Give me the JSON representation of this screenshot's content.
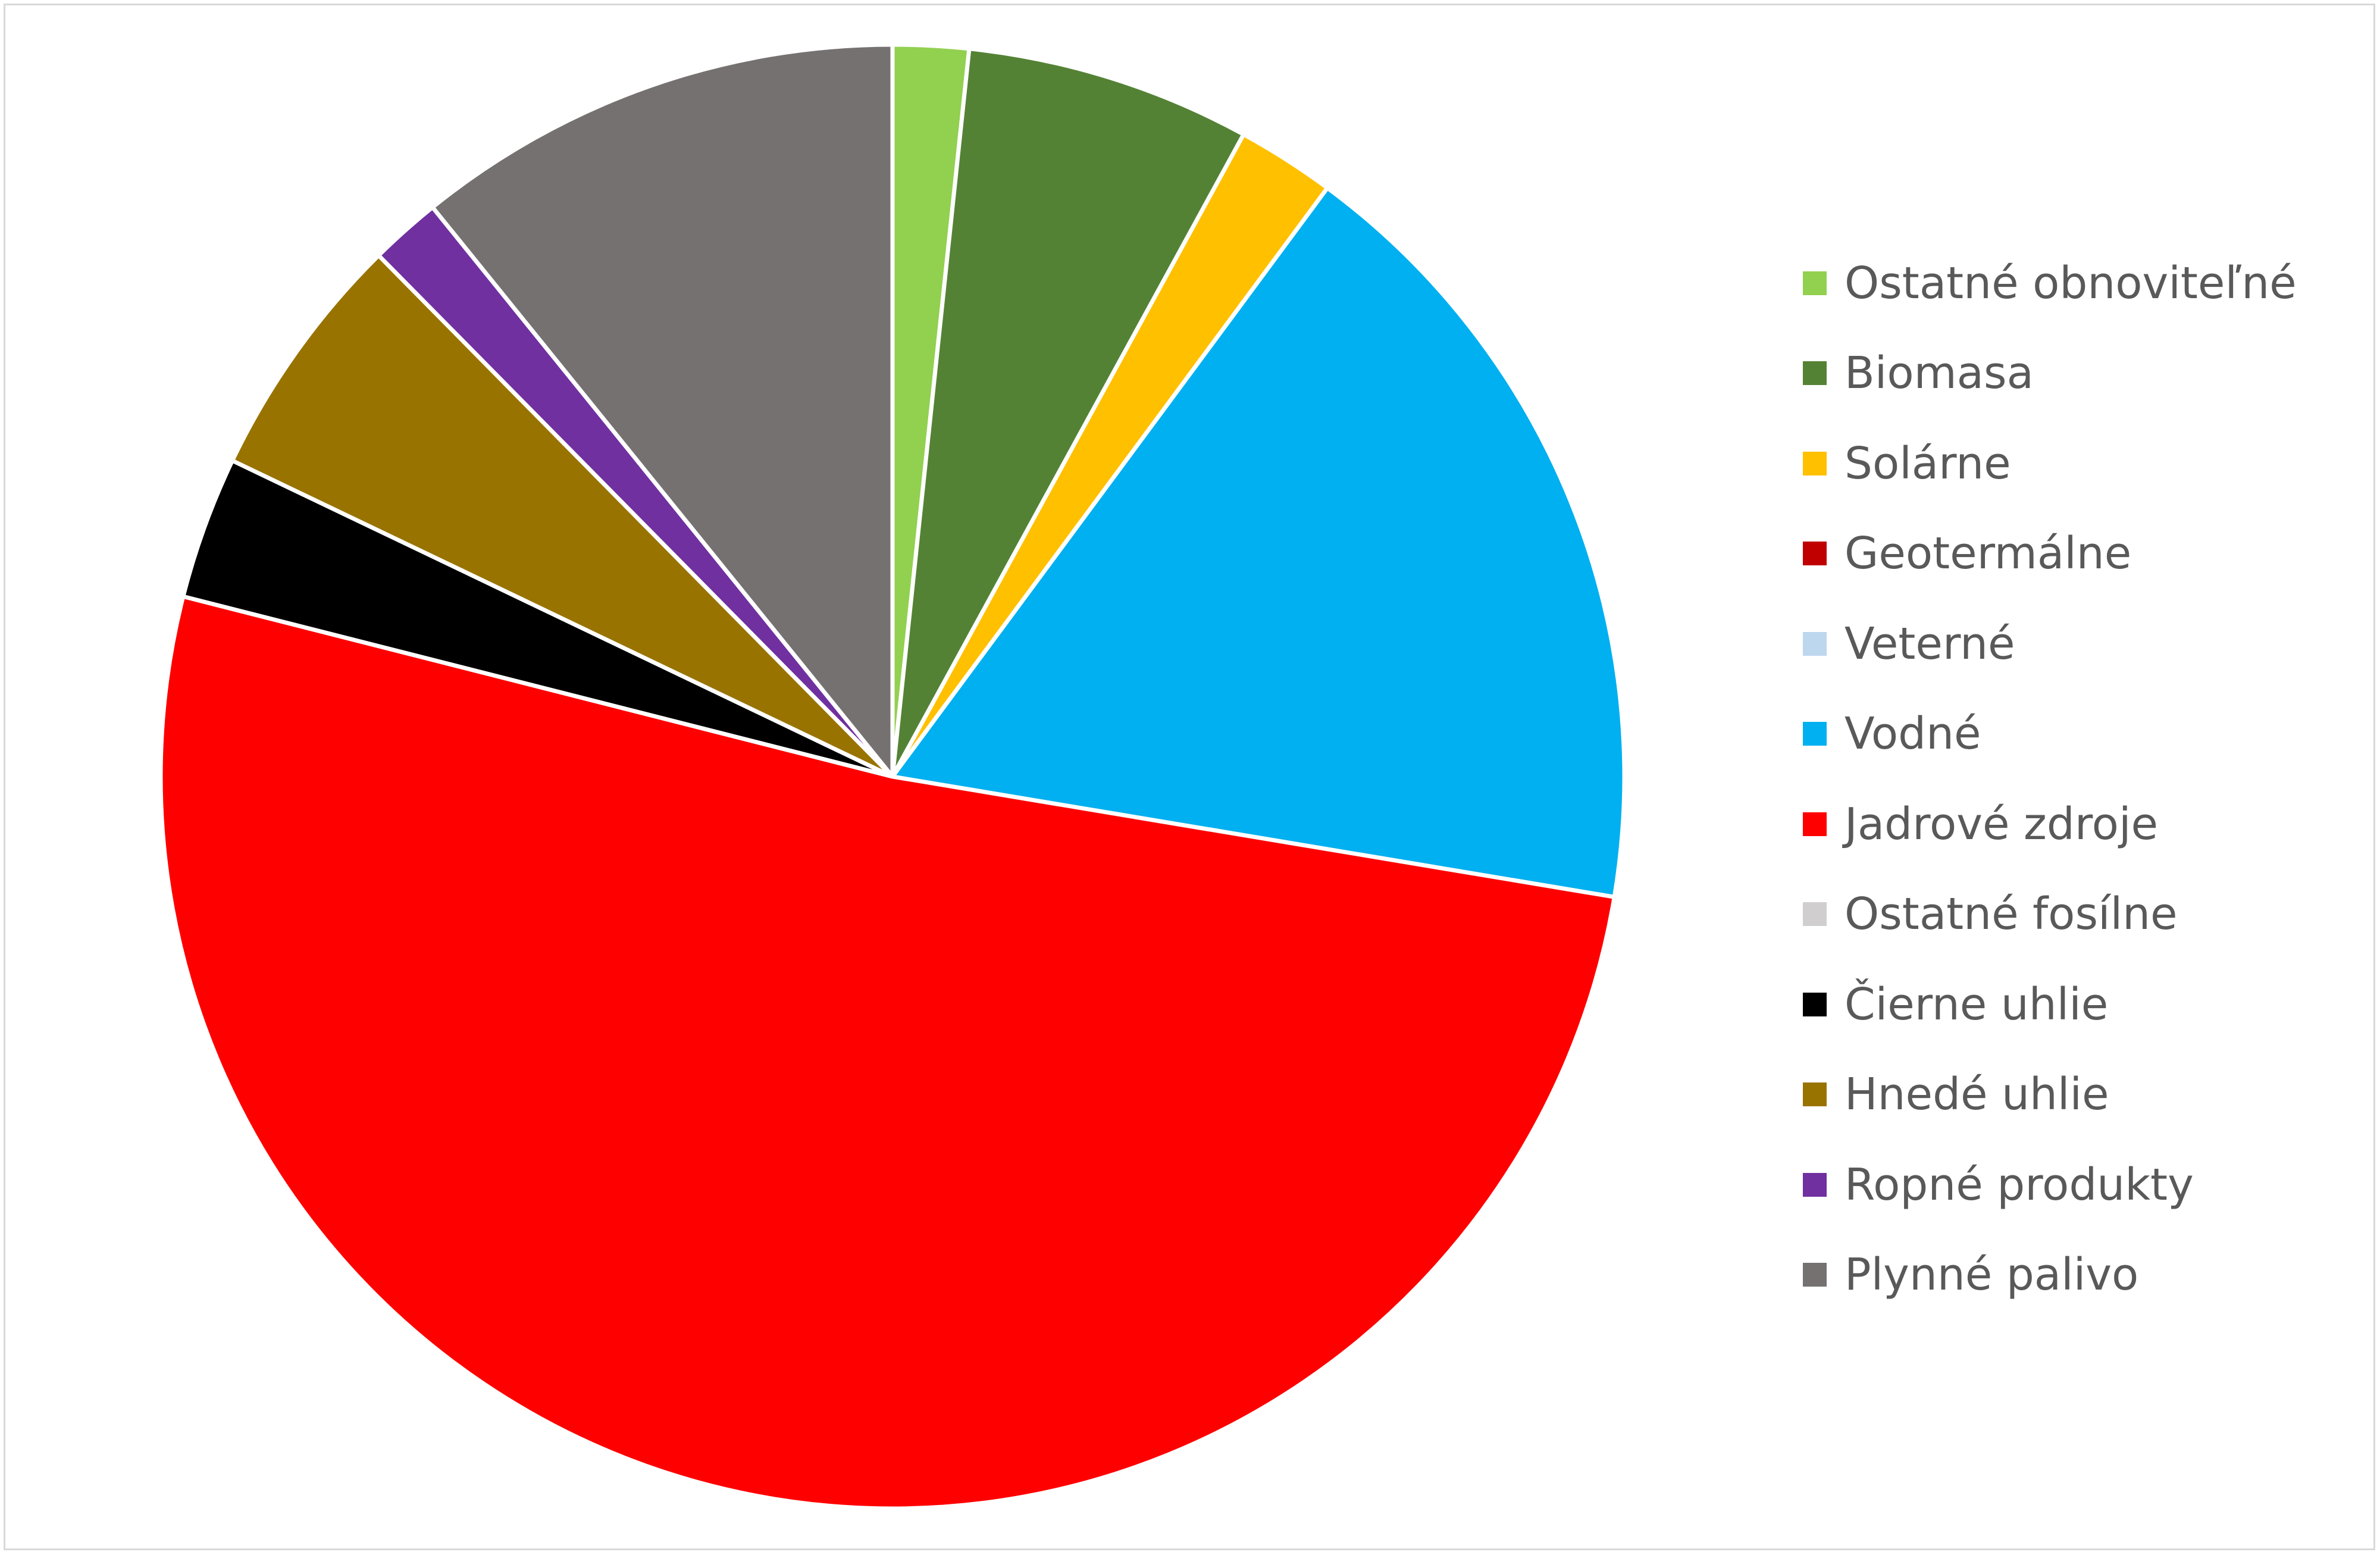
{
  "chart_data": {
    "type": "pie",
    "title": "",
    "legend_position": "right",
    "start_angle_deg": 0,
    "direction": "clockwise",
    "slices": [
      {
        "label": "Ostatné obnoviteľné",
        "value": 1.7,
        "color": "#92d050"
      },
      {
        "label": "Biomasa",
        "value": 6.4,
        "color": "#548235"
      },
      {
        "label": "Solárne",
        "value": 2.2,
        "color": "#ffc000"
      },
      {
        "label": "Geotermálne",
        "value": 0,
        "color": "#c00000"
      },
      {
        "label": "Veterné",
        "value": 0,
        "color": "#bdd7ee"
      },
      {
        "label": "Vodné",
        "value": 17.8,
        "color": "#00b0f0"
      },
      {
        "label": "Jadrové zdroje",
        "value": 52.2,
        "color": "#ff0000"
      },
      {
        "label": "Ostatné fosílne",
        "value": 0,
        "color": "#d0cece"
      },
      {
        "label": "Čierne uhlie",
        "value": 3.2,
        "color": "#000000"
      },
      {
        "label": "Hnedé uhlie",
        "value": 5.6,
        "color": "#997300"
      },
      {
        "label": "Ropné produkty",
        "value": 1.6,
        "color": "#7030a0"
      },
      {
        "label": "Plynné palivo",
        "value": 11.0,
        "color": "#767171"
      }
    ]
  }
}
